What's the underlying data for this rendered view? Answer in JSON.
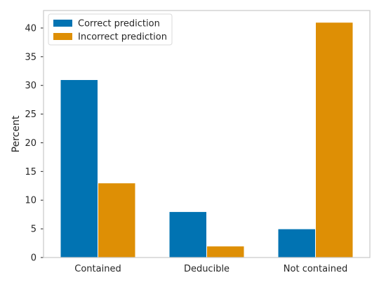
{
  "chart_data": {
    "type": "bar",
    "title": "",
    "xlabel": "",
    "ylabel": "Percent",
    "categories": [
      "Contained",
      "Deducible",
      "Not contained"
    ],
    "series": [
      {
        "name": "Correct prediction",
        "values": [
          31,
          8,
          5
        ],
        "color": "#0173b2"
      },
      {
        "name": "Incorrect prediction",
        "values": [
          13,
          2,
          41
        ],
        "color": "#de8f05"
      }
    ],
    "ylim": [
      0,
      43.05
    ],
    "yticks": [
      0,
      5,
      10,
      15,
      20,
      25,
      30,
      35,
      40
    ],
    "grid": false,
    "legend_position": "top-left",
    "frame_color": "#cccccc"
  }
}
